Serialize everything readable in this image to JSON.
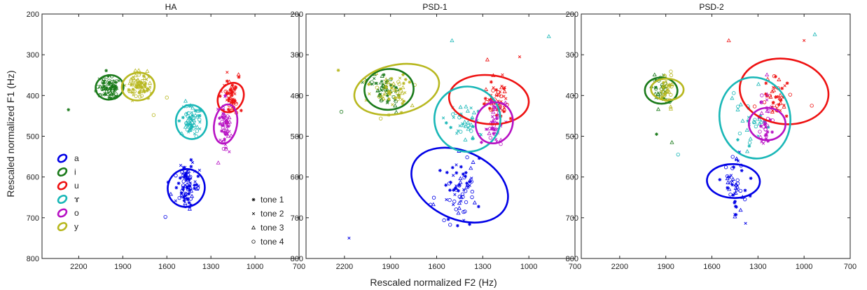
{
  "figure": {
    "ylabel": "Rescaled normalized F1 (Hz)",
    "xlabel": "Rescaled normalized F2 (Hz)"
  },
  "vowel_legend": [
    {
      "label": "a",
      "color": "#0000e6"
    },
    {
      "label": "i",
      "color": "#1a7a1a"
    },
    {
      "label": "u",
      "color": "#ee1111"
    },
    {
      "label": "ɤ",
      "color": "#19b7b7"
    },
    {
      "label": "o",
      "color": "#b711c4"
    },
    {
      "label": "y",
      "color": "#b8b820"
    }
  ],
  "tone_legend": [
    {
      "label": "tone 1",
      "marker": "star"
    },
    {
      "label": "tone 2",
      "marker": "x"
    },
    {
      "label": "tone 3",
      "marker": "triangle"
    },
    {
      "label": "tone 4",
      "marker": "circle"
    }
  ],
  "chart_data": [
    {
      "type": "scatter",
      "title": "HA",
      "x_axis": {
        "ticks": [
          2200,
          1900,
          1600,
          1300,
          1000,
          700
        ],
        "range": [
          2450,
          700
        ],
        "reversed": true
      },
      "y_axis": {
        "ticks": [
          200,
          300,
          400,
          500,
          600,
          700,
          800
        ],
        "range": [
          200,
          800
        ],
        "reversed": true
      },
      "ellipses": [
        {
          "vowel": "a",
          "cx": 1468,
          "cy": 627,
          "rx": 130,
          "ry": 45,
          "angle_deg": 60
        },
        {
          "vowel": "i",
          "cx": 1990,
          "cy": 380,
          "rx": 95,
          "ry": 30,
          "angle_deg": 10
        },
        {
          "vowel": "u",
          "cx": 1165,
          "cy": 405,
          "rx": 105,
          "ry": 30,
          "angle_deg": 60
        },
        {
          "vowel": "ɤ",
          "cx": 1433,
          "cy": 465,
          "rx": 105,
          "ry": 42,
          "angle_deg": 10
        },
        {
          "vowel": "o",
          "cx": 1200,
          "cy": 470,
          "rx": 135,
          "ry": 28,
          "angle_deg": 80
        },
        {
          "vowel": "y",
          "cx": 1795,
          "cy": 378,
          "rx": 112,
          "ry": 34,
          "angle_deg": 8
        }
      ],
      "clusters": [
        {
          "vowel": "a",
          "cx": 1468,
          "cy": 627,
          "sx": 40,
          "sy": 28,
          "n": 90
        },
        {
          "vowel": "i",
          "cx": 1990,
          "cy": 380,
          "sx": 38,
          "sy": 16,
          "n": 75
        },
        {
          "vowel": "u",
          "cx": 1165,
          "cy": 405,
          "sx": 25,
          "sy": 20,
          "n": 55
        },
        {
          "vowel": "ɤ",
          "cx": 1433,
          "cy": 465,
          "sx": 30,
          "sy": 20,
          "n": 60
        },
        {
          "vowel": "o",
          "cx": 1200,
          "cy": 470,
          "sx": 20,
          "sy": 28,
          "n": 55
        },
        {
          "vowel": "y",
          "cx": 1795,
          "cy": 378,
          "sx": 38,
          "sy": 16,
          "n": 75
        }
      ],
      "outliers": [
        {
          "vowel": "i",
          "x": 2270,
          "y": 435,
          "marker": "star"
        },
        {
          "vowel": "y",
          "x": 1600,
          "y": 405,
          "marker": "circle"
        },
        {
          "vowel": "y",
          "x": 1690,
          "y": 448,
          "marker": "circle"
        },
        {
          "vowel": "u",
          "x": 1110,
          "y": 355,
          "marker": "star"
        },
        {
          "vowel": "a",
          "x": 1610,
          "y": 698,
          "marker": "circle"
        },
        {
          "vowel": "o",
          "x": 1250,
          "y": 565,
          "marker": "triangle"
        },
        {
          "vowel": "o",
          "x": 1175,
          "y": 538,
          "marker": "x"
        }
      ]
    },
    {
      "type": "scatter",
      "title": "PSD-1",
      "x_axis": {
        "ticks": [
          2200,
          1900,
          1600,
          1300,
          1000,
          700
        ],
        "range": [
          2450,
          700
        ],
        "reversed": true
      },
      "y_axis": {
        "ticks": [
          200,
          300,
          400,
          500,
          600,
          700,
          800
        ],
        "range": [
          200,
          800
        ],
        "reversed": true
      },
      "ellipses": [
        {
          "vowel": "a",
          "cx": 1450,
          "cy": 620,
          "rx": 220,
          "ry": 125,
          "angle_deg": 65
        },
        {
          "vowel": "i",
          "cx": 1910,
          "cy": 385,
          "rx": 160,
          "ry": 50,
          "angle_deg": 5
        },
        {
          "vowel": "u",
          "cx": 1260,
          "cy": 410,
          "rx": 260,
          "ry": 60,
          "angle_deg": -5
        },
        {
          "vowel": "ɤ",
          "cx": 1400,
          "cy": 458,
          "rx": 215,
          "ry": 80,
          "angle_deg": -10
        },
        {
          "vowel": "o",
          "cx": 1225,
          "cy": 467,
          "rx": 135,
          "ry": 45,
          "angle_deg": 72
        },
        {
          "vowel": "y",
          "cx": 1860,
          "cy": 385,
          "rx": 280,
          "ry": 60,
          "angle_deg": 12
        }
      ],
      "clusters": [
        {
          "vowel": "a",
          "cx": 1450,
          "cy": 625,
          "sx": 55,
          "sy": 45,
          "n": 70
        },
        {
          "vowel": "i",
          "cx": 1930,
          "cy": 385,
          "sx": 55,
          "sy": 22,
          "n": 55
        },
        {
          "vowel": "u",
          "cx": 1200,
          "cy": 410,
          "sx": 35,
          "sy": 25,
          "n": 55
        },
        {
          "vowel": "ɤ",
          "cx": 1430,
          "cy": 465,
          "sx": 55,
          "sy": 30,
          "n": 40
        },
        {
          "vowel": "o",
          "cx": 1225,
          "cy": 470,
          "sx": 30,
          "sy": 30,
          "n": 45
        },
        {
          "vowel": "y",
          "cx": 1880,
          "cy": 385,
          "sx": 70,
          "sy": 25,
          "n": 55
        }
      ],
      "outliers": [
        {
          "vowel": "a",
          "x": 2170,
          "y": 750,
          "marker": "x"
        },
        {
          "vowel": "ɤ",
          "x": 1500,
          "y": 265,
          "marker": "triangle"
        },
        {
          "vowel": "ɤ",
          "x": 870,
          "y": 255,
          "marker": "triangle"
        },
        {
          "vowel": "u",
          "x": 1060,
          "y": 305,
          "marker": "x"
        },
        {
          "vowel": "u",
          "x": 1270,
          "y": 312,
          "marker": "triangle"
        },
        {
          "vowel": "i",
          "x": 2220,
          "y": 440,
          "marker": "circle"
        },
        {
          "vowel": "y",
          "x": 2240,
          "y": 338,
          "marker": "star"
        },
        {
          "vowel": "a",
          "x": 1640,
          "y": 668,
          "marker": "circle"
        }
      ]
    },
    {
      "type": "scatter",
      "title": "PSD-2",
      "x_axis": {
        "ticks": [
          2200,
          1900,
          1600,
          1300,
          1000,
          700
        ],
        "range": [
          2450,
          700
        ],
        "reversed": true
      },
      "y_axis": {
        "ticks": [
          200,
          300,
          400,
          500,
          600,
          700,
          800
        ],
        "range": [
          200,
          800
        ],
        "reversed": true
      },
      "ellipses": [
        {
          "vowel": "a",
          "cx": 1460,
          "cy": 610,
          "rx": 110,
          "ry": 65,
          "angle_deg": 88
        },
        {
          "vowel": "i",
          "cx": 1930,
          "cy": 388,
          "rx": 85,
          "ry": 40,
          "angle_deg": 88
        },
        {
          "vowel": "u",
          "cx": 1130,
          "cy": 390,
          "rx": 290,
          "ry": 80,
          "angle_deg": -8
        },
        {
          "vowel": "ɤ",
          "cx": 1320,
          "cy": 455,
          "rx": 230,
          "ry": 100,
          "angle_deg": 10
        },
        {
          "vowel": "o",
          "cx": 1240,
          "cy": 470,
          "rx": 105,
          "ry": 45,
          "angle_deg": 90
        },
        {
          "vowel": "y",
          "cx": 1890,
          "cy": 385,
          "rx": 70,
          "ry": 40,
          "angle_deg": 88
        }
      ],
      "clusters": [
        {
          "vowel": "a",
          "cx": 1450,
          "cy": 620,
          "sx": 40,
          "sy": 40,
          "n": 50
        },
        {
          "vowel": "i",
          "cx": 1930,
          "cy": 385,
          "sx": 30,
          "sy": 25,
          "n": 35
        },
        {
          "vowel": "u",
          "cx": 1190,
          "cy": 400,
          "sx": 45,
          "sy": 25,
          "n": 45
        },
        {
          "vowel": "ɤ",
          "cx": 1360,
          "cy": 470,
          "sx": 55,
          "sy": 30,
          "n": 30
        },
        {
          "vowel": "o",
          "cx": 1250,
          "cy": 470,
          "sx": 25,
          "sy": 35,
          "n": 40
        },
        {
          "vowel": "y",
          "cx": 1890,
          "cy": 385,
          "sx": 25,
          "sy": 22,
          "n": 35
        }
      ],
      "outliers": [
        {
          "vowel": "u",
          "x": 1490,
          "y": 265,
          "marker": "triangle"
        },
        {
          "vowel": "ɤ",
          "x": 930,
          "y": 250,
          "marker": "triangle"
        },
        {
          "vowel": "u",
          "x": 1000,
          "y": 265,
          "marker": "x"
        },
        {
          "vowel": "i",
          "x": 1960,
          "y": 495,
          "marker": "star"
        },
        {
          "vowel": "i",
          "x": 1860,
          "y": 515,
          "marker": "triangle"
        },
        {
          "vowel": "ɤ",
          "x": 1820,
          "y": 545,
          "marker": "circle"
        },
        {
          "vowel": "u",
          "x": 950,
          "y": 425,
          "marker": "circle"
        }
      ]
    }
  ]
}
